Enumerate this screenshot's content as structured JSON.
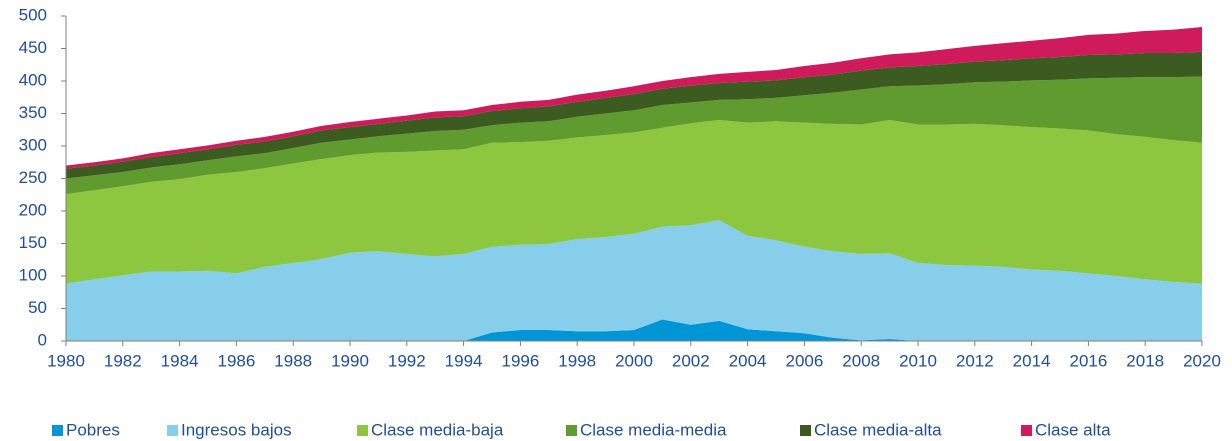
{
  "chart_data": {
    "type": "stacked_area",
    "x": [
      1980,
      1981,
      1982,
      1983,
      1984,
      1985,
      1986,
      1987,
      1988,
      1989,
      1990,
      1991,
      1992,
      1993,
      1994,
      1995,
      1996,
      1997,
      1998,
      1999,
      2000,
      2001,
      2002,
      2003,
      2004,
      2005,
      2006,
      2007,
      2008,
      2009,
      2010,
      2011,
      2012,
      2013,
      2014,
      2015,
      2016,
      2017,
      2018,
      2019,
      2020
    ],
    "xlim": [
      1980,
      2020
    ],
    "xticks": [
      1980,
      1982,
      1984,
      1986,
      1988,
      1990,
      1992,
      1994,
      1996,
      1998,
      2000,
      2002,
      2004,
      2006,
      2008,
      2010,
      2012,
      2014,
      2016,
      2018,
      2020
    ],
    "ylim": [
      0,
      500
    ],
    "yticks": [
      0,
      50,
      100,
      150,
      200,
      250,
      300,
      350,
      400,
      450,
      500
    ],
    "legend": "bottom",
    "series": [
      {
        "name": "Pobres",
        "color": "#0096d6",
        "values": [
          0,
          0,
          0,
          0,
          0,
          0,
          0,
          0,
          0,
          0,
          0,
          0,
          0,
          0,
          0,
          13,
          17,
          17,
          15,
          15,
          17,
          33,
          25,
          31,
          18,
          15,
          12,
          5,
          1,
          3,
          0,
          0,
          0,
          0,
          0,
          0,
          0,
          0,
          0,
          0,
          0
        ]
      },
      {
        "name": "Ingresos bajos",
        "color": "#87ceeb",
        "values": [
          88,
          95,
          101,
          107,
          107,
          108,
          104,
          114,
          120,
          126,
          136,
          138,
          134,
          130,
          134,
          132,
          131,
          132,
          142,
          145,
          148,
          143,
          153,
          155,
          144,
          140,
          133,
          133,
          133,
          132,
          120,
          117,
          116,
          114,
          110,
          108,
          104,
          100,
          95,
          91,
          88
        ]
      },
      {
        "name": "Clase media-baja",
        "color": "#8dc63f",
        "values": [
          138,
          137,
          137,
          138,
          142,
          148,
          156,
          152,
          153,
          154,
          150,
          152,
          157,
          163,
          161,
          160,
          158,
          159,
          156,
          157,
          156,
          152,
          157,
          154,
          174,
          183,
          191,
          196,
          199,
          205,
          213,
          216,
          218,
          218,
          219,
          219,
          220,
          218,
          219,
          218,
          217
        ]
      },
      {
        "name": "Clase media-media",
        "color": "#5f9b2e",
        "values": [
          24,
          23,
          22,
          22,
          23,
          22,
          24,
          23,
          24,
          25,
          24,
          25,
          28,
          30,
          30,
          27,
          30,
          30,
          32,
          33,
          34,
          35,
          32,
          31,
          36,
          36,
          42,
          48,
          54,
          52,
          60,
          62,
          64,
          67,
          72,
          75,
          80,
          87,
          92,
          97,
          102
        ]
      },
      {
        "name": "Clase media-alta",
        "color": "#3c5b21",
        "values": [
          15,
          15,
          16,
          16,
          17,
          17,
          18,
          18,
          18,
          19,
          19,
          19,
          20,
          21,
          21,
          22,
          22,
          23,
          23,
          24,
          25,
          25,
          26,
          26,
          27,
          27,
          28,
          28,
          29,
          29,
          30,
          31,
          32,
          33,
          34,
          35,
          36,
          36,
          37,
          37,
          38
        ]
      },
      {
        "name": "Clase alta",
        "color": "#cf1a5c",
        "values": [
          5,
          5,
          5,
          6,
          6,
          6,
          6,
          7,
          7,
          7,
          8,
          8,
          8,
          9,
          9,
          9,
          10,
          10,
          11,
          11,
          12,
          12,
          13,
          14,
          15,
          16,
          17,
          18,
          19,
          20,
          21,
          23,
          24,
          26,
          27,
          29,
          31,
          32,
          34,
          36,
          38
        ]
      }
    ]
  }
}
